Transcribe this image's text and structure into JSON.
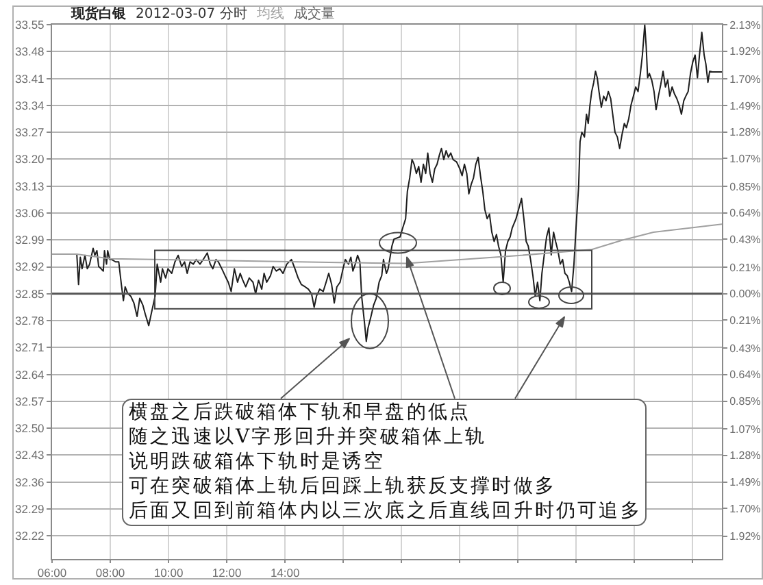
{
  "chart_data": {
    "type": "line",
    "title": "现货白银",
    "subtitle": "2012-03-07 分时",
    "annotations": [
      "成交量",
      "横盘之后跌破箱体下轨和早盘的低点",
      "随之迅速以V字形回升并突破箱体上轨",
      "说明跌破箱体下轨时是诱空",
      "可在突破箱体上轨后回踩上轨获反支撑时做多",
      "后面又回到前箱体内以三次底之后直线回升时仍可追多"
    ],
    "xlim": [
      6,
      29
    ],
    "xticks": [
      {
        "value": 6,
        "label": "06:00"
      },
      {
        "value": 8,
        "label": "08:00"
      },
      {
        "value": 10,
        "label": "10:00"
      },
      {
        "value": 12,
        "label": "12:00"
      },
      {
        "value": 14,
        "label": "14:00"
      },
      {
        "value": 16,
        "label": null
      },
      {
        "value": 18,
        "label": null
      },
      {
        "value": 20,
        "label": null
      },
      {
        "value": 22,
        "label": null
      },
      {
        "value": 24,
        "label": null
      },
      {
        "value": 26,
        "label": null
      },
      {
        "value": 28,
        "label": null
      }
    ],
    "ylim": [
      32.16,
      33.55
    ],
    "yticks": [
      33.55,
      33.48,
      33.41,
      33.34,
      33.27,
      {
        "value": 33.2,
        "label": "33.20"
      },
      33.13,
      33.06,
      32.99,
      32.92,
      32.85,
      32.78,
      32.71,
      32.64,
      32.57,
      {
        "value": 32.5,
        "label": "32.50"
      },
      32.43,
      32.36,
      32.29,
      32.22
    ],
    "y2lim": [
      -2.1,
      2.13
    ],
    "y2ticks": [
      {
        "value": 2.13,
        "label": "2.13%"
      },
      {
        "value": 1.92,
        "label": "1.92%"
      },
      {
        "value": 1.7,
        "label": "1.70%"
      },
      {
        "value": 1.49,
        "label": "1.49%"
      },
      {
        "value": 1.28,
        "label": "1.28%"
      },
      {
        "value": 1.07,
        "label": "1.07%"
      },
      {
        "value": 0.85,
        "label": "0.85%"
      },
      {
        "value": 0.64,
        "label": "0.64%"
      },
      {
        "value": 0.43,
        "label": "0.43%"
      },
      {
        "value": 0.21,
        "label": "0.21%"
      },
      {
        "value": 0,
        "label": "0.00%"
      },
      {
        "value": -0.21,
        "label": "0.21%"
      },
      {
        "value": -0.43,
        "label": "0.43%"
      },
      {
        "value": -0.64,
        "label": "0.64%"
      },
      {
        "value": -0.85,
        "label": "0.85%"
      },
      {
        "value": -1.07,
        "label": "1.07%"
      },
      {
        "value": -1.28,
        "label": "1.28%"
      },
      {
        "value": -1.49,
        "label": "1.49%"
      },
      {
        "value": -1.7,
        "label": "1.70%"
      },
      {
        "value": -1.92,
        "label": "1.92%"
      }
    ],
    "grid": true,
    "ref_lines": [
      {
        "axis": "y",
        "value": 32.85,
        "color": "#555555"
      }
    ],
    "series": [
      {
        "color": "#1e1e1e",
        "x": [
          6,
          6.85,
          6.91,
          6.97,
          7.03,
          7.13,
          7.21,
          7.29,
          7.41,
          7.47,
          7.54,
          7.6,
          7.66,
          7.76,
          7.8,
          7.87,
          7.91,
          7.98,
          8.05,
          8.18,
          8.29,
          8.38,
          8.45,
          8.51,
          8.6,
          8.7,
          8.81,
          8.92,
          9.01,
          9.12,
          9.2,
          9.32,
          9.42,
          9.54,
          9.61,
          9.67,
          9.73,
          9.79,
          9.9,
          9.98,
          10.11,
          10.22,
          10.33,
          10.45,
          10.55,
          10.64,
          10.74,
          10.85,
          10.95,
          11.08,
          11.24,
          11.33,
          11.43,
          11.52,
          11.63,
          11.71,
          11.83,
          11.94,
          12.05,
          12.15,
          12.26,
          12.37,
          12.46,
          12.55,
          12.65,
          12.77,
          12.9,
          12.99,
          13.09,
          13.2,
          13.28,
          13.37,
          13.5,
          13.59,
          13.7,
          13.82,
          13.93,
          14.06,
          14.22,
          14.34,
          14.45,
          14.56,
          14.69,
          14.8,
          14.91,
          15,
          15.08,
          15.19,
          15.31,
          15.41,
          15.5,
          15.6,
          15.69,
          15.78,
          15.89,
          15.99,
          16.07,
          16.18,
          16.26,
          16.33,
          16.41,
          16.49,
          16.57,
          16.63,
          16.73,
          16.79,
          16.85,
          16.95,
          17.04,
          17.13,
          17.23,
          17.32,
          17.38,
          17.48,
          17.54,
          17.67,
          17.74,
          17.95,
          18.04,
          18.14,
          18.2,
          18.28,
          18.36,
          18.43,
          18.51,
          18.59,
          18.67,
          18.75,
          18.83,
          18.9,
          18.98,
          19.06,
          19.14,
          19.22,
          19.3,
          19.37,
          19.45,
          19.53,
          19.61,
          19.69,
          19.77,
          19.89,
          20,
          20.08,
          20.16,
          20.24,
          20.31,
          20.39,
          20.47,
          20.55,
          20.63,
          20.71,
          20.79,
          20.86,
          20.94,
          21.02,
          21.1,
          21.18,
          21.26,
          21.33,
          21.41,
          21.49,
          21.57,
          21.65,
          21.73,
          21.8,
          21.93,
          22.04,
          22.12,
          22.2,
          22.28,
          22.35,
          22.43,
          22.51,
          22.59,
          22.67,
          22.75,
          22.82,
          22.9,
          22.98,
          23.06,
          23.14,
          23.22,
          23.29,
          23.37,
          23.45,
          23.53,
          23.61,
          23.69,
          23.76,
          23.84,
          23.92,
          24,
          24.08,
          24.13,
          24.19,
          24.28,
          24.35,
          24.41,
          24.47,
          24.53,
          24.6,
          24.66,
          24.72,
          24.78,
          24.86,
          24.94,
          25.02,
          25.1,
          25.18,
          25.25,
          25.33,
          25.41,
          25.49,
          25.57,
          25.65,
          25.72,
          25.8,
          25.88,
          25.96,
          26.04,
          26.12,
          26.2,
          26.27,
          26.35,
          26.4,
          26.45,
          26.51,
          26.59,
          26.67,
          26.74,
          26.82,
          26.9,
          26.98,
          27.06,
          27.14,
          27.21,
          27.29,
          27.37,
          27.45,
          27.53,
          27.61,
          27.69,
          27.76,
          27.84,
          27.92,
          28,
          28.08,
          28.16,
          28.23,
          28.31,
          28.39,
          28.45,
          28.52,
          28.58,
          28.67,
          29
        ],
        "values": [
          32.953,
          32.953,
          32.874,
          32.945,
          32.915,
          32.95,
          32.915,
          32.927,
          32.968,
          32.95,
          32.962,
          32.921,
          32.917,
          32.909,
          32.962,
          32.927,
          32.962,
          32.939,
          32.939,
          32.933,
          32.933,
          32.874,
          32.832,
          32.868,
          32.85,
          32.844,
          32.826,
          32.791,
          32.838,
          32.82,
          32.797,
          32.767,
          32.803,
          32.844,
          32.927,
          32.903,
          32.88,
          32.915,
          32.891,
          32.915,
          32.903,
          32.933,
          32.95,
          32.921,
          32.933,
          32.903,
          32.933,
          32.927,
          32.939,
          32.927,
          32.945,
          32.956,
          32.927,
          32.915,
          32.939,
          32.933,
          32.915,
          32.897,
          32.88,
          32.856,
          32.915,
          32.88,
          32.903,
          32.885,
          32.868,
          32.891,
          32.88,
          32.85,
          32.885,
          32.862,
          32.903,
          32.88,
          32.897,
          32.921,
          32.909,
          32.915,
          32.903,
          32.927,
          32.939,
          32.915,
          32.891,
          32.874,
          32.868,
          32.862,
          32.85,
          32.815,
          32.844,
          32.862,
          32.856,
          32.88,
          32.903,
          32.874,
          32.826,
          32.868,
          32.88,
          32.915,
          32.939,
          32.927,
          32.945,
          32.909,
          32.927,
          32.95,
          32.933,
          32.844,
          32.773,
          32.726,
          32.761,
          32.791,
          32.82,
          32.838,
          32.88,
          32.897,
          32.939,
          32.903,
          32.915,
          32.974,
          32.992,
          32.998,
          33.021,
          33.045,
          33.116,
          33.151,
          33.199,
          33.187,
          33.163,
          33.181,
          33.14,
          33.187,
          33.163,
          33.216,
          33.163,
          33.14,
          33.175,
          33.187,
          33.211,
          33.228,
          33.199,
          33.222,
          33.205,
          33.216,
          33.199,
          33.193,
          33.175,
          33.157,
          33.187,
          33.163,
          33.11,
          33.134,
          33.151,
          33.187,
          33.205,
          33.157,
          33.116,
          33.069,
          33.045,
          33.057,
          33.01,
          32.986,
          33.004,
          32.974,
          32.951,
          32.88,
          32.962,
          32.986,
          32.998,
          33.021,
          33.045,
          33.075,
          33.098,
          33.045,
          32.986,
          32.974,
          32.939,
          32.897,
          32.844,
          32.88,
          32.832,
          32.903,
          32.951,
          32.998,
          33.021,
          32.951,
          33.01,
          32.986,
          32.962,
          32.927,
          32.939,
          32.903,
          32.897,
          32.88,
          32.856,
          32.927,
          33.033,
          33.128,
          33.246,
          33.27,
          33.258,
          33.317,
          33.293,
          33.341,
          33.376,
          33.4,
          33.429,
          33.412,
          33.376,
          33.335,
          33.364,
          33.352,
          33.376,
          33.358,
          33.317,
          33.27,
          33.258,
          33.228,
          33.264,
          33.293,
          33.282,
          33.305,
          33.341,
          33.364,
          33.388,
          33.376,
          33.423,
          33.471,
          33.55,
          33.494,
          33.412,
          33.423,
          33.406,
          33.376,
          33.329,
          33.364,
          33.394,
          33.429,
          33.388,
          33.406,
          33.364,
          33.388,
          33.37,
          33.358,
          33.341,
          33.317,
          33.352,
          33.364,
          33.376,
          33.423,
          33.453,
          33.471,
          33.412,
          33.471,
          33.53,
          33.471,
          33.447,
          33.4,
          33.429,
          33.427,
          33.427
        ]
      },
      {
        "name": "均线",
        "color": "#a0a0a0",
        "x": [
          6,
          6.85,
          8,
          12,
          17,
          18.18,
          21.95,
          24.53,
          25.57,
          26.65,
          28.2,
          29
        ],
        "values": [
          32.953,
          32.953,
          32.941,
          32.936,
          32.93,
          32.929,
          32.949,
          32.965,
          32.989,
          33.01,
          33.024,
          33.031
        ]
      }
    ]
  }
}
